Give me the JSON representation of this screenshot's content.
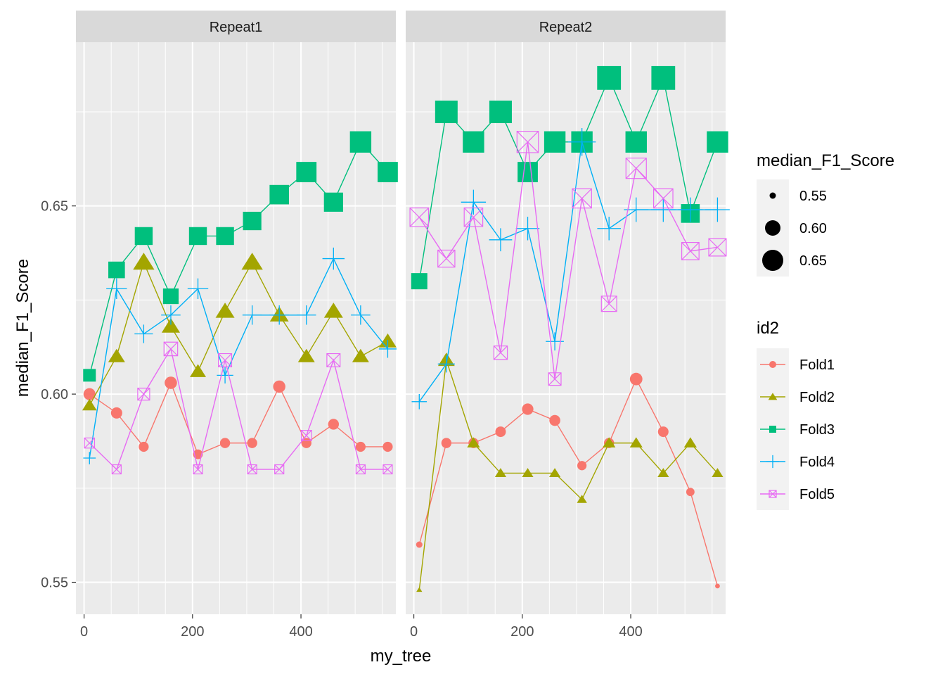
{
  "chart_data": {
    "type": "line",
    "xlabel": "my_tree",
    "ylabel": "median_F1_Score",
    "xlim": [
      -15,
      575
    ],
    "ylim": [
      0.5415,
      0.6935
    ],
    "x_ticks": [
      0,
      200,
      400
    ],
    "y_ticks": [
      0.55,
      0.6,
      0.65
    ],
    "x_tick_labels": [
      "0",
      "200",
      "400"
    ],
    "y_tick_labels": [
      "0.55",
      "0.60",
      "0.65"
    ],
    "panels": [
      "Repeat1",
      "Repeat2"
    ],
    "colors": {
      "Fold1": "#F8766D",
      "Fold2": "#A3A500",
      "Fold3": "#00BF7D",
      "Fold4": "#00B0F6",
      "Fold5": "#E76BF3"
    },
    "shapes": {
      "Fold1": "circle",
      "Fold2": "triangle",
      "Fold3": "square",
      "Fold4": "plus",
      "Fold5": "square-cross"
    },
    "size_legend": {
      "title": "median_F1_Score",
      "values": [
        0.55,
        0.6,
        0.65
      ],
      "labels": [
        "0.55",
        "0.60",
        "0.65"
      ]
    },
    "color_legend": {
      "title": "id2",
      "entries": [
        "Fold1",
        "Fold2",
        "Fold3",
        "Fold4",
        "Fold5"
      ]
    },
    "x": [
      10,
      60,
      110,
      160,
      210,
      260,
      310,
      360,
      410,
      460,
      510,
      560
    ],
    "series": [
      {
        "panel": "Repeat1",
        "name": "Fold1",
        "values": [
          0.6,
          0.595,
          0.586,
          0.603,
          0.584,
          0.587,
          0.587,
          0.602,
          0.587,
          0.592,
          0.586,
          0.586
        ]
      },
      {
        "panel": "Repeat1",
        "name": "Fold2",
        "values": [
          0.597,
          0.61,
          0.635,
          0.618,
          0.606,
          0.622,
          0.635,
          0.621,
          0.61,
          0.622,
          0.61,
          0.614
        ]
      },
      {
        "panel": "Repeat1",
        "name": "Fold3",
        "values": [
          0.605,
          0.633,
          0.642,
          0.626,
          0.642,
          0.642,
          0.646,
          0.653,
          0.659,
          0.651,
          0.667,
          0.659
        ]
      },
      {
        "panel": "Repeat1",
        "name": "Fold4",
        "values": [
          0.583,
          0.628,
          0.616,
          0.621,
          0.628,
          0.605,
          0.621,
          0.621,
          0.621,
          0.636,
          0.621,
          0.612
        ]
      },
      {
        "panel": "Repeat1",
        "name": "Fold5",
        "values": [
          0.587,
          0.58,
          0.6,
          0.612,
          0.58,
          0.609,
          0.58,
          0.58,
          0.589,
          0.609,
          0.58,
          0.58
        ]
      },
      {
        "panel": "Repeat2",
        "name": "Fold1",
        "values": [
          0.56,
          0.587,
          0.587,
          0.59,
          0.596,
          0.593,
          0.581,
          0.587,
          0.604,
          0.59,
          0.574,
          0.549
        ]
      },
      {
        "panel": "Repeat2",
        "name": "Fold2",
        "values": [
          0.548,
          0.609,
          0.587,
          0.579,
          0.579,
          0.579,
          0.572,
          0.587,
          0.587,
          0.579,
          0.587,
          0.579
        ]
      },
      {
        "panel": "Repeat2",
        "name": "Fold3",
        "values": [
          0.63,
          0.675,
          0.667,
          0.675,
          0.659,
          0.667,
          0.667,
          0.684,
          0.667,
          0.684,
          0.648,
          0.667
        ]
      },
      {
        "panel": "Repeat2",
        "name": "Fold4",
        "values": [
          0.598,
          0.608,
          0.651,
          0.641,
          0.644,
          0.614,
          0.667,
          0.644,
          0.649,
          0.649,
          0.649,
          0.649
        ]
      },
      {
        "panel": "Repeat2",
        "name": "Fold5",
        "values": [
          0.647,
          0.636,
          0.647,
          0.611,
          0.667,
          0.604,
          0.652,
          0.624,
          0.66,
          0.652,
          0.638,
          0.639
        ]
      }
    ]
  }
}
